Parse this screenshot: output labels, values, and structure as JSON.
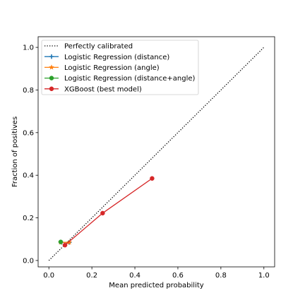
{
  "chart_data": {
    "type": "line",
    "title": "",
    "xlabel": "Mean predicted probability",
    "ylabel": "Fraction of positives",
    "xlim": [
      -0.05,
      1.05
    ],
    "ylim": [
      -0.03,
      1.05
    ],
    "xticks": [
      "0.0",
      "0.2",
      "0.4",
      "0.6",
      "0.8",
      "1.0"
    ],
    "yticks": [
      "0.0",
      "0.2",
      "0.4",
      "0.6",
      "0.8",
      "1.0"
    ],
    "grid": false,
    "legend_position": "top-left",
    "series": [
      {
        "name": "Perfectly calibrated",
        "color": "#000000",
        "style": "dotted",
        "marker": "none",
        "x": [
          0,
          1
        ],
        "y": [
          0,
          1
        ]
      },
      {
        "name": "Logistic Regression (distance)",
        "color": "#1f77b4",
        "style": "solid",
        "marker": "plus",
        "x": [
          0.06,
          0.095
        ],
        "y": [
          0.085,
          0.085
        ]
      },
      {
        "name": "Logistic Regression (angle)",
        "color": "#ff7f0e",
        "style": "solid",
        "marker": "star",
        "x": [
          0.055,
          0.095
        ],
        "y": [
          0.085,
          0.085
        ]
      },
      {
        "name": "Logistic Regression (distance+angle)",
        "color": "#2ca02c",
        "style": "solid",
        "marker": "circle",
        "x": [
          0.055
        ],
        "y": [
          0.087
        ]
      },
      {
        "name": "XGBoost (best model)",
        "color": "#d62728",
        "style": "solid",
        "marker": "circle",
        "x": [
          0.075,
          0.25,
          0.48
        ],
        "y": [
          0.072,
          0.222,
          0.385
        ]
      }
    ]
  }
}
